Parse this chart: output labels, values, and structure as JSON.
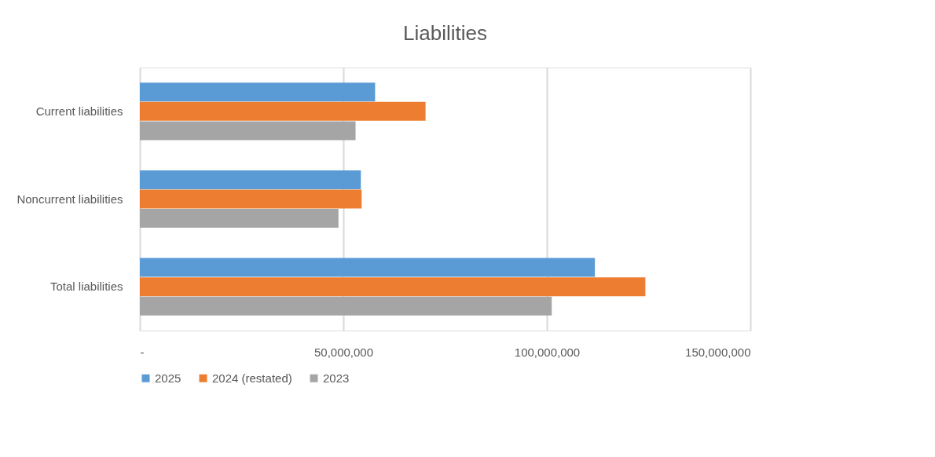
{
  "chart_data": {
    "type": "bar",
    "title": "Liabilities",
    "orientation": "horizontal",
    "categories": [
      "Current liabilities",
      "Noncurrent liabilities",
      "Total liabilities"
    ],
    "series": [
      {
        "name": "2025",
        "color": "#5b9bd5",
        "values": [
          57800000,
          54300000,
          111800000
        ]
      },
      {
        "name": "2024 (restated)",
        "color": "#ed7d31",
        "values": [
          70200000,
          54500000,
          124200000
        ]
      },
      {
        "name": "2023",
        "color": "#a5a5a5",
        "values": [
          53000000,
          48800000,
          101200000
        ]
      }
    ],
    "xlim": [
      0,
      150000000
    ],
    "xticks": [
      {
        "value": 0,
        "label": "-"
      },
      {
        "value": 50000000,
        "label": "50,000,000"
      },
      {
        "value": 100000000,
        "label": "100,000,000"
      },
      {
        "value": 150000000,
        "label": "150,000,000"
      }
    ],
    "grid": "x",
    "legend": "bottom"
  }
}
